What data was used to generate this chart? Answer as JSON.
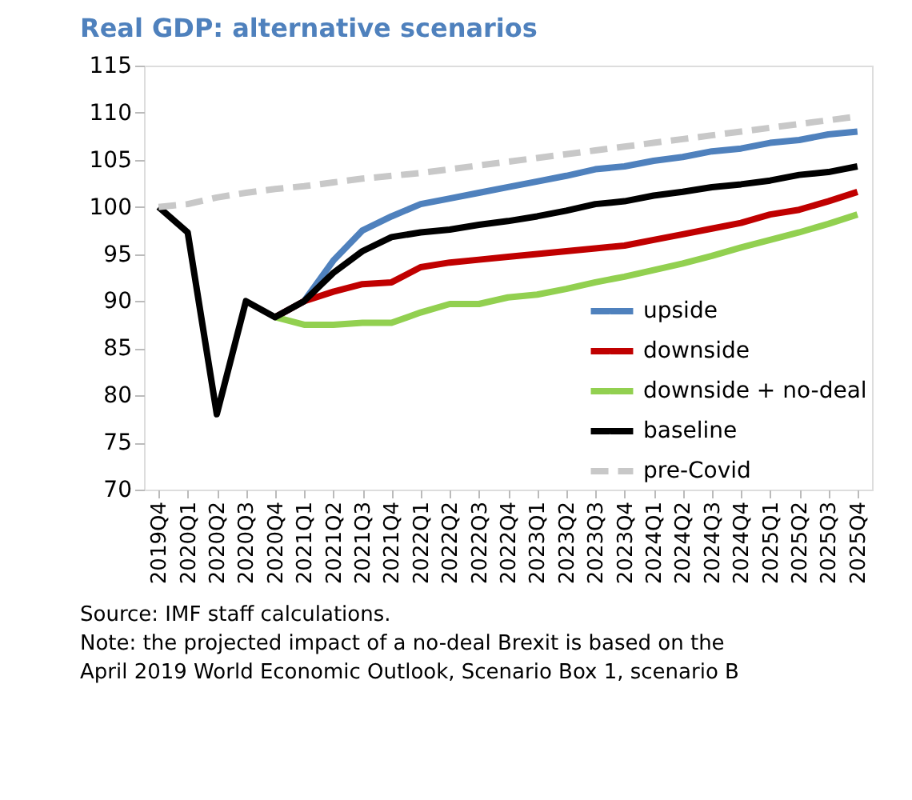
{
  "chart_data": {
    "type": "line",
    "title": "Real GDP: alternative scenarios",
    "categories": [
      "2019Q4",
      "2020Q1",
      "2020Q2",
      "2020Q3",
      "2020Q4",
      "2021Q1",
      "2021Q2",
      "2021Q3",
      "2021Q4",
      "2022Q1",
      "2022Q2",
      "2022Q3",
      "2022Q4",
      "2023Q1",
      "2023Q2",
      "2023Q3",
      "2023Q4",
      "2024Q1",
      "2024Q2",
      "2024Q3",
      "2024Q4",
      "2025Q1",
      "2025Q2",
      "2025Q3",
      "2025Q4"
    ],
    "series": [
      {
        "name": "upside",
        "color": "#4f81bd",
        "line_style": "solid",
        "values": [
          null,
          null,
          null,
          null,
          88.3,
          90,
          94.3,
          97.5,
          99,
          100.3,
          100.9,
          101.5,
          102.1,
          102.7,
          103.3,
          104,
          104.3,
          104.9,
          105.3,
          105.9,
          106.2,
          106.8,
          107.1,
          107.7,
          108
        ]
      },
      {
        "name": "downside",
        "color": "#c00000",
        "line_style": "solid",
        "values": [
          null,
          null,
          null,
          null,
          88.3,
          90,
          91,
          91.8,
          92,
          93.6,
          94.1,
          94.4,
          94.7,
          95,
          95.3,
          95.6,
          95.9,
          96.5,
          97.1,
          97.7,
          98.3,
          99.2,
          99.7,
          100.6,
          101.6
        ]
      },
      {
        "name": "downside + no-deal",
        "color": "#92d050",
        "line_style": "solid",
        "values": [
          null,
          null,
          null,
          null,
          88.3,
          87.5,
          87.5,
          87.7,
          87.7,
          88.8,
          89.7,
          89.7,
          90.4,
          90.7,
          91.3,
          92,
          92.6,
          93.3,
          94,
          94.8,
          95.7,
          96.5,
          97.3,
          98.2,
          99.2
        ]
      },
      {
        "name": "baseline",
        "color": "#000000",
        "line_style": "solid",
        "values": [
          100,
          97.3,
          78,
          90,
          88.3,
          90,
          93,
          95.3,
          96.8,
          97.3,
          97.6,
          98.1,
          98.5,
          99,
          99.6,
          100.3,
          100.6,
          101.2,
          101.6,
          102.1,
          102.4,
          102.8,
          103.4,
          103.7,
          104.3
        ]
      },
      {
        "name": "pre-Covid",
        "color": "#c8c8c8",
        "line_style": "dashed",
        "values": [
          100,
          100.3,
          101,
          101.5,
          101.9,
          102.2,
          102.6,
          103,
          103.3,
          103.6,
          104,
          104.4,
          104.8,
          105.2,
          105.6,
          106,
          106.4,
          106.8,
          107.2,
          107.6,
          108,
          108.4,
          108.8,
          109.2,
          109.6
        ]
      }
    ],
    "ylim": [
      70,
      115
    ],
    "yticks": [
      70,
      75,
      80,
      85,
      90,
      95,
      100,
      105,
      110,
      115
    ],
    "grid": false,
    "legend": "bottom right",
    "marker": "none",
    "annotations": [
      "Source: IMF staff calculations.",
      "Note: the projected impact of a no-deal Brexit is based on the April 2019 World Economic Outlook, Scenario Box 1, scenario B"
    ]
  }
}
